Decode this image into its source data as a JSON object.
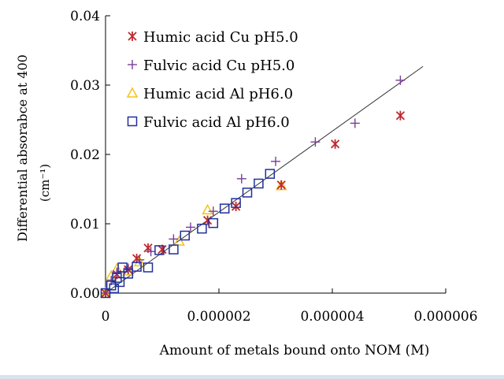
{
  "chart_data": {
    "type": "scatter",
    "xlabel": "Amount of metals bound onto NOM (M)",
    "ylabel": "Differential absorabce at 400",
    "ylabel_unit": "(cm⁻¹)",
    "xlim": [
      0,
      6e-06
    ],
    "ylim": [
      0,
      0.04
    ],
    "x_ticks": [
      "0",
      "0.000002",
      "0.000004",
      "0.000006"
    ],
    "x_tick_values": [
      0,
      2e-06,
      4e-06,
      6e-06
    ],
    "y_ticks": [
      "0.00",
      "0.01",
      "0.02",
      "0.03",
      "0.04"
    ],
    "y_tick_values": [
      0,
      0.01,
      0.02,
      0.03,
      0.04
    ],
    "grid": false,
    "legend_position": "top-left",
    "series": [
      {
        "name": "Humic acid Cu pH5.0",
        "marker": "asterisk",
        "color": "#c0282e",
        "points": [
          [
            0.0,
            0.0
          ],
          [
            2e-07,
            0.0027
          ],
          [
            4e-07,
            0.0034
          ],
          [
            5.5e-07,
            0.005
          ],
          [
            7.5e-07,
            0.0065
          ],
          [
            1e-06,
            0.0063
          ],
          [
            1.8e-06,
            0.0105
          ],
          [
            2.3e-06,
            0.0125
          ],
          [
            3.1e-06,
            0.0156
          ],
          [
            4.05e-06,
            0.0215
          ],
          [
            5.2e-06,
            0.0256
          ]
        ]
      },
      {
        "name": "Fulvic acid Cu pH5.0",
        "marker": "plus",
        "color": "#7a3e96",
        "points": [
          [
            0.0,
            0.0
          ],
          [
            1e-07,
            0.0018
          ],
          [
            2e-07,
            0.003
          ],
          [
            4e-07,
            0.0036
          ],
          [
            6e-07,
            0.0048
          ],
          [
            8e-07,
            0.006
          ],
          [
            1.2e-06,
            0.0078
          ],
          [
            1.5e-06,
            0.0095
          ],
          [
            1.9e-06,
            0.0118
          ],
          [
            2.4e-06,
            0.0165
          ],
          [
            3e-06,
            0.019
          ],
          [
            3.7e-06,
            0.0218
          ],
          [
            4.4e-06,
            0.0245
          ],
          [
            5.2e-06,
            0.0307
          ]
        ]
      },
      {
        "name": "Humic acid Al pH6.0",
        "marker": "triangle",
        "color": "#f2c318",
        "points": [
          [
            0.0,
            0.0
          ],
          [
            1e-07,
            0.0025
          ],
          [
            2e-07,
            0.0035
          ],
          [
            4e-07,
            0.0032
          ],
          [
            6e-07,
            0.0045
          ],
          [
            1.3e-06,
            0.0075
          ],
          [
            1.8e-06,
            0.012
          ],
          [
            3.1e-06,
            0.0155
          ]
        ]
      },
      {
        "name": "Fulvic acid Al pH6.0",
        "marker": "square",
        "color": "#1f2f9c",
        "points": [
          [
            0.0,
            0.0
          ],
          [
            1e-07,
            0.0011
          ],
          [
            1.5e-07,
            0.0007
          ],
          [
            2e-07,
            0.0022
          ],
          [
            2.5e-07,
            0.0016
          ],
          [
            3e-07,
            0.0037
          ],
          [
            4e-07,
            0.0028
          ],
          [
            5.5e-07,
            0.0038
          ],
          [
            7.5e-07,
            0.0037
          ],
          [
            9.5e-07,
            0.0062
          ],
          [
            1.2e-06,
            0.0063
          ],
          [
            1.4e-06,
            0.0083
          ],
          [
            1.7e-06,
            0.0093
          ],
          [
            1.9e-06,
            0.0101
          ],
          [
            2.1e-06,
            0.0122
          ],
          [
            2.3e-06,
            0.013
          ],
          [
            2.5e-06,
            0.0145
          ],
          [
            2.7e-06,
            0.0158
          ],
          [
            2.9e-06,
            0.0172
          ]
        ]
      }
    ],
    "trendline": {
      "from": [
        0,
        0
      ],
      "to": [
        5.6e-06,
        0.0327
      ],
      "color": "#333333"
    }
  }
}
